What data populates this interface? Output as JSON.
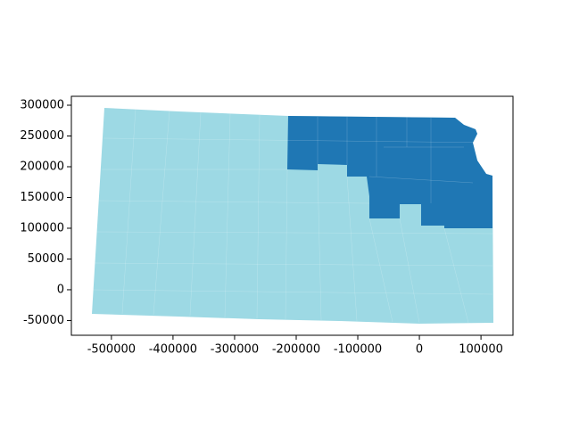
{
  "chart_data": {
    "type": "map",
    "xlim": [
      -565000,
      152000
    ],
    "ylim": [
      -74000,
      314500
    ],
    "xticks": [
      -500000,
      -400000,
      -300000,
      -200000,
      -100000,
      0,
      100000
    ],
    "yticks": [
      -50000,
      0,
      50000,
      100000,
      150000,
      200000,
      250000,
      300000
    ]
  }
}
